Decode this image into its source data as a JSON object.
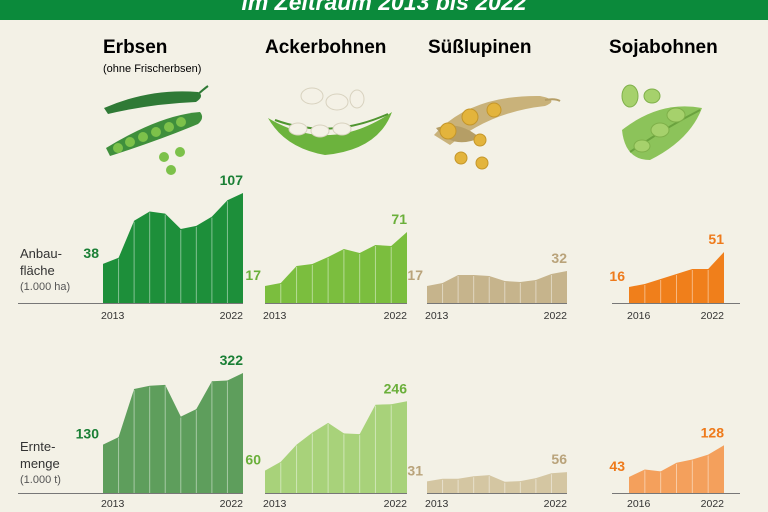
{
  "banner": {
    "text": "im Zeitraum 2013 bis 2022"
  },
  "row_labels": {
    "area": {
      "line1": "Anbau-",
      "line2": "fläche",
      "unit": "(1.000 ha)"
    },
    "harvest": {
      "line1": "Ernte-",
      "line2": "menge",
      "unit": "(1.000 t)"
    }
  },
  "crops": [
    {
      "name": "Erbsen",
      "note": "(ohne Frischerbsen)",
      "color": "#2e8b3d"
    },
    {
      "name": "Ackerbohnen",
      "note": "",
      "color": "#6fb43a"
    },
    {
      "name": "Süßlupinen",
      "note": "",
      "color": "#bba57c"
    },
    {
      "name": "Sojabohnen",
      "note": "",
      "color": "#f07f1b"
    }
  ],
  "chart_data": [
    {
      "type": "area",
      "title": "Erbsen – Anbaufläche",
      "ylabel": "Anbaufläche (1.000 ha)",
      "x": [
        2013,
        2014,
        2015,
        2016,
        2017,
        2018,
        2019,
        2020,
        2021,
        2022
      ],
      "values": [
        38,
        44,
        80,
        89,
        87,
        72,
        75,
        84,
        100,
        107
      ],
      "start_label": "38",
      "end_label": "107",
      "x_start": "2013",
      "x_end": "2022",
      "color": "#1d8f3a"
    },
    {
      "type": "area",
      "title": "Ackerbohnen – Anbaufläche",
      "ylabel": "Anbaufläche (1.000 ha)",
      "x": [
        2013,
        2014,
        2015,
        2016,
        2017,
        2018,
        2019,
        2020,
        2021,
        2022
      ],
      "values": [
        17,
        20,
        37,
        39,
        46,
        54,
        50,
        58,
        57,
        71
      ],
      "start_label": "17",
      "end_label": "71",
      "x_start": "2013",
      "x_end": "2022",
      "color": "#7bbe3e"
    },
    {
      "type": "area",
      "title": "Süßlupinen – Anbaufläche",
      "ylabel": "Anbaufläche (1.000 ha)",
      "x": [
        2013,
        2014,
        2015,
        2016,
        2017,
        2018,
        2019,
        2020,
        2021,
        2022
      ],
      "values": [
        17,
        20,
        28,
        28,
        27,
        22,
        21,
        23,
        29,
        32
      ],
      "start_label": "17",
      "end_label": "32",
      "x_start": "2013",
      "x_end": "2022",
      "color": "#c6b48c"
    },
    {
      "type": "area",
      "title": "Sojabohnen – Anbaufläche",
      "ylabel": "Anbaufläche (1.000 ha)",
      "x": [
        2016,
        2017,
        2018,
        2019,
        2020,
        2021,
        2022
      ],
      "values": [
        16,
        19,
        24,
        29,
        34,
        34,
        51
      ],
      "start_label": "16",
      "end_label": "51",
      "x_start": "2016",
      "x_end": "2022",
      "color": "#f07f1b"
    },
    {
      "type": "area",
      "title": "Erbsen – Erntemenge",
      "ylabel": "Erntemenge (1.000 t)",
      "x": [
        2013,
        2014,
        2015,
        2016,
        2017,
        2018,
        2019,
        2020,
        2021,
        2022
      ],
      "values": [
        130,
        150,
        279,
        288,
        290,
        205,
        225,
        300,
        302,
        322
      ],
      "start_label": "130",
      "end_label": "322",
      "x_start": "2013",
      "x_end": "2022",
      "color": "#5e9e5c"
    },
    {
      "type": "area",
      "title": "Ackerbohnen – Erntemenge",
      "ylabel": "Erntemenge (1.000 t)",
      "x": [
        2013,
        2014,
        2015,
        2016,
        2017,
        2018,
        2019,
        2020,
        2021,
        2022
      ],
      "values": [
        60,
        84,
        130,
        162,
        188,
        160,
        158,
        237,
        238,
        246
      ],
      "start_label": "60",
      "end_label": "246",
      "x_start": "2013",
      "x_end": "2022",
      "color": "#a8d27a"
    },
    {
      "type": "area",
      "title": "Süßlupinen – Erntemenge",
      "ylabel": "Erntemenge (1.000 t)",
      "x": [
        2013,
        2014,
        2015,
        2016,
        2017,
        2018,
        2019,
        2020,
        2021,
        2022
      ],
      "values": [
        31,
        38,
        38,
        45,
        48,
        30,
        32,
        40,
        53,
        56
      ],
      "start_label": "31",
      "end_label": "56",
      "x_start": "2013",
      "x_end": "2022",
      "color": "#d4c6a2"
    },
    {
      "type": "area",
      "title": "Sojabohnen – Erntemenge",
      "ylabel": "Erntemenge (1.000 t)",
      "x": [
        2016,
        2017,
        2018,
        2019,
        2020,
        2021,
        2022
      ],
      "values": [
        43,
        63,
        58,
        81,
        90,
        103,
        128
      ],
      "start_label": "43",
      "end_label": "128",
      "x_start": "2016",
      "x_end": "2022",
      "color": "#f4a05c"
    }
  ]
}
